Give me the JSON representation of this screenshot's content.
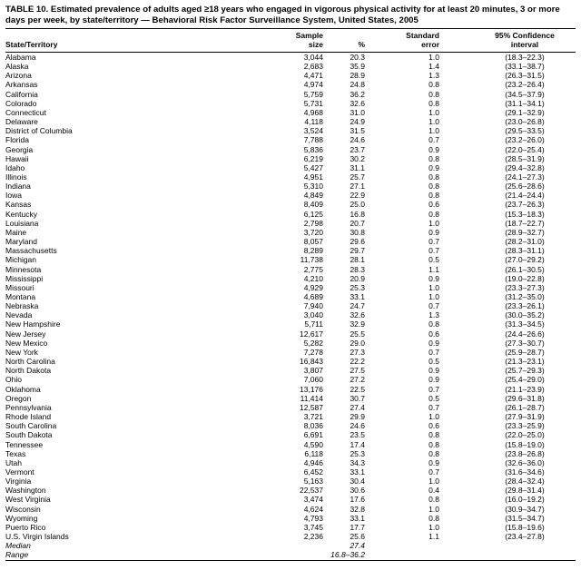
{
  "title": "TABLE 10. Estimated prevalence of adults aged ≥18 years who engaged in vigorous physical activity for at least 20 minutes, 3 or more days per week, by state/territory — Behavioral Risk Factor Surveillance System, United States, 2005",
  "columns": {
    "state": "State/Territory",
    "sample_line1": "Sample",
    "sample_line2": "size",
    "percent": "%",
    "se_line1": "Standard",
    "se_line2": "error",
    "ci_line1": "95% Confidence",
    "ci_line2": "interval"
  },
  "rows": [
    {
      "state": "Alabama",
      "sample": "3,044",
      "percent": "20.3",
      "se": "1.0",
      "ci": "(18.3–22.3)"
    },
    {
      "state": "Alaska",
      "sample": "2,683",
      "percent": "35.9",
      "se": "1.4",
      "ci": "(33.1–38.7)"
    },
    {
      "state": "Arizona",
      "sample": "4,471",
      "percent": "28.9",
      "se": "1.3",
      "ci": "(26.3–31.5)"
    },
    {
      "state": "Arkansas",
      "sample": "4,974",
      "percent": "24.8",
      "se": "0.8",
      "ci": "(23.2–26.4)"
    },
    {
      "state": "California",
      "sample": "5,759",
      "percent": "36.2",
      "se": "0.8",
      "ci": "(34.5–37.9)"
    },
    {
      "state": "Colorado",
      "sample": "5,731",
      "percent": "32.6",
      "se": "0.8",
      "ci": "(31.1–34.1)"
    },
    {
      "state": "Connecticut",
      "sample": "4,968",
      "percent": "31.0",
      "se": "1.0",
      "ci": "(29.1–32.9)"
    },
    {
      "state": "Delaware",
      "sample": "4,118",
      "percent": "24.9",
      "se": "1.0",
      "ci": "(23.0–26.8)"
    },
    {
      "state": "District of Columbia",
      "sample": "3,524",
      "percent": "31.5",
      "se": "1.0",
      "ci": "(29.5–33.5)"
    },
    {
      "state": "Florida",
      "sample": "7,788",
      "percent": "24.6",
      "se": "0.7",
      "ci": "(23.2–26.0)"
    },
    {
      "state": "Georgia",
      "sample": "5,836",
      "percent": "23.7",
      "se": "0.9",
      "ci": "(22.0–25.4)"
    },
    {
      "state": "Hawaii",
      "sample": "6,219",
      "percent": "30.2",
      "se": "0.8",
      "ci": "(28.5–31.9)"
    },
    {
      "state": "Idaho",
      "sample": "5,427",
      "percent": "31.1",
      "se": "0.9",
      "ci": "(29.4–32.8)"
    },
    {
      "state": "Illinois",
      "sample": "4,951",
      "percent": "25.7",
      "se": "0.8",
      "ci": "(24.1–27.3)"
    },
    {
      "state": "Indiana",
      "sample": "5,310",
      "percent": "27.1",
      "se": "0.8",
      "ci": "(25.6–28.6)"
    },
    {
      "state": "Iowa",
      "sample": "4,849",
      "percent": "22.9",
      "se": "0.8",
      "ci": "(21.4–24.4)"
    },
    {
      "state": "Kansas",
      "sample": "8,409",
      "percent": "25.0",
      "se": "0.6",
      "ci": "(23.7–26.3)"
    },
    {
      "state": "Kentucky",
      "sample": "6,125",
      "percent": "16.8",
      "se": "0.8",
      "ci": "(15.3–18.3)"
    },
    {
      "state": "Louisiana",
      "sample": "2,798",
      "percent": "20.7",
      "se": "1.0",
      "ci": "(18.7–22.7)"
    },
    {
      "state": "Maine",
      "sample": "3,720",
      "percent": "30.8",
      "se": "0.9",
      "ci": "(28.9–32.7)"
    },
    {
      "state": "Maryland",
      "sample": "8,057",
      "percent": "29.6",
      "se": "0.7",
      "ci": "(28.2–31.0)"
    },
    {
      "state": "Massachusetts",
      "sample": "8,289",
      "percent": "29.7",
      "se": "0.7",
      "ci": "(28.3–31.1)"
    },
    {
      "state": "Michigan",
      "sample": "11,738",
      "percent": "28.1",
      "se": "0.5",
      "ci": "(27.0–29.2)"
    },
    {
      "state": "Minnesota",
      "sample": "2,775",
      "percent": "28.3",
      "se": "1.1",
      "ci": "(26.1–30.5)"
    },
    {
      "state": "Mississippi",
      "sample": "4,210",
      "percent": "20.9",
      "se": "0.9",
      "ci": "(19.0–22.8)"
    },
    {
      "state": "Missouri",
      "sample": "4,929",
      "percent": "25.3",
      "se": "1.0",
      "ci": "(23.3–27.3)"
    },
    {
      "state": "Montana",
      "sample": "4,689",
      "percent": "33.1",
      "se": "1.0",
      "ci": "(31.2–35.0)"
    },
    {
      "state": "Nebraska",
      "sample": "7,940",
      "percent": "24.7",
      "se": "0.7",
      "ci": "(23.3–26.1)"
    },
    {
      "state": "Nevada",
      "sample": "3,040",
      "percent": "32.6",
      "se": "1.3",
      "ci": "(30.0–35.2)"
    },
    {
      "state": "New Hampshire",
      "sample": "5,711",
      "percent": "32.9",
      "se": "0.8",
      "ci": "(31.3–34.5)"
    },
    {
      "state": "New Jersey",
      "sample": "12,617",
      "percent": "25.5",
      "se": "0.6",
      "ci": "(24.4–26.6)"
    },
    {
      "state": "New Mexico",
      "sample": "5,282",
      "percent": "29.0",
      "se": "0.9",
      "ci": "(27.3–30.7)"
    },
    {
      "state": "New York",
      "sample": "7,278",
      "percent": "27.3",
      "se": "0.7",
      "ci": "(25.9–28.7)"
    },
    {
      "state": "North Carolina",
      "sample": "16,843",
      "percent": "22.2",
      "se": "0.5",
      "ci": "(21.3–23.1)"
    },
    {
      "state": "North Dakota",
      "sample": "3,807",
      "percent": "27.5",
      "se": "0.9",
      "ci": "(25.7–29.3)"
    },
    {
      "state": "Ohio",
      "sample": "7,060",
      "percent": "27.2",
      "se": "0.9",
      "ci": "(25.4–29.0)"
    },
    {
      "state": "Oklahoma",
      "sample": "13,176",
      "percent": "22.5",
      "se": "0.7",
      "ci": "(21.1–23.9)"
    },
    {
      "state": "Oregon",
      "sample": "11,414",
      "percent": "30.7",
      "se": "0.5",
      "ci": "(29.6–31.8)"
    },
    {
      "state": "Pennsylvania",
      "sample": "12,587",
      "percent": "27.4",
      "se": "0.7",
      "ci": "(26.1–28.7)"
    },
    {
      "state": "Rhode Island",
      "sample": "3,721",
      "percent": "29.9",
      "se": "1.0",
      "ci": "(27.9–31.9)"
    },
    {
      "state": "South Carolina",
      "sample": "8,036",
      "percent": "24.6",
      "se": "0.6",
      "ci": "(23.3–25.9)"
    },
    {
      "state": "South Dakota",
      "sample": "6,691",
      "percent": "23.5",
      "se": "0.8",
      "ci": "(22.0–25.0)"
    },
    {
      "state": "Tennessee",
      "sample": "4,590",
      "percent": "17.4",
      "se": "0.8",
      "ci": "(15.8–19.0)"
    },
    {
      "state": "Texas",
      "sample": "6,118",
      "percent": "25.3",
      "se": "0.8",
      "ci": "(23.8–26.8)"
    },
    {
      "state": "Utah",
      "sample": "4,946",
      "percent": "34.3",
      "se": "0.9",
      "ci": "(32.6–36.0)"
    },
    {
      "state": "Vermont",
      "sample": "6,452",
      "percent": "33.1",
      "se": "0.7",
      "ci": "(31.6–34.6)"
    },
    {
      "state": "Virginia",
      "sample": "5,163",
      "percent": "30.4",
      "se": "1.0",
      "ci": "(28.4–32.4)"
    },
    {
      "state": "Washington",
      "sample": "22,537",
      "percent": "30.6",
      "se": "0.4",
      "ci": "(29.8–31.4)"
    },
    {
      "state": "West Virginia",
      "sample": "3,474",
      "percent": "17.6",
      "se": "0.8",
      "ci": "(16.0–19.2)"
    },
    {
      "state": "Wisconsin",
      "sample": "4,624",
      "percent": "32.8",
      "se": "1.0",
      "ci": "(30.9–34.7)"
    },
    {
      "state": "Wyoming",
      "sample": "4,793",
      "percent": "33.1",
      "se": "0.8",
      "ci": "(31.5–34.7)"
    },
    {
      "state": "Puerto Rico",
      "sample": "3,745",
      "percent": "17.7",
      "se": "1.0",
      "ci": "(15.8–19.6)"
    },
    {
      "state": "U.S. Virgin Islands",
      "sample": "2,236",
      "percent": "25.6",
      "se": "1.1",
      "ci": "(23.4–27.8)"
    }
  ],
  "summary_rows": [
    {
      "state": "Median",
      "sample": "",
      "percent": "27.4",
      "se": "",
      "ci": ""
    },
    {
      "state": "Range",
      "sample": "",
      "percent": "16.8–36.2",
      "se": "",
      "ci": ""
    }
  ]
}
